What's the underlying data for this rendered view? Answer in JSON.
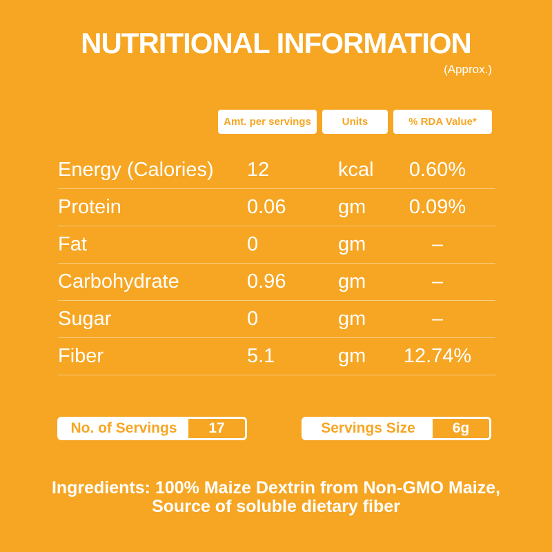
{
  "page": {
    "background_color": "#F6A623",
    "text_color": "#FFFFFF"
  },
  "header": {
    "title": "NUTRITIONAL INFORMATION",
    "subtitle": "(Approx.)"
  },
  "table": {
    "columns": [
      "Amt. per servings",
      "Units",
      "% RDA Value*"
    ],
    "rows": [
      {
        "label": "Energy (Calories)",
        "amount": "12",
        "unit": "kcal",
        "rda": "0.60%"
      },
      {
        "label": "Protein",
        "amount": "0.06",
        "unit": "gm",
        "rda": "0.09%"
      },
      {
        "label": "Fat",
        "amount": "0",
        "unit": "gm",
        "rda": "–"
      },
      {
        "label": "Carbohydrate",
        "amount": "0.96",
        "unit": "gm",
        "rda": "–"
      },
      {
        "label": "Sugar",
        "amount": "0",
        "unit": "gm",
        "rda": "–"
      },
      {
        "label": "Fiber",
        "amount": "5.1",
        "unit": "gm",
        "rda": "12.74%"
      }
    ]
  },
  "servings": {
    "count_label": "No. of Servings",
    "count_value": "17",
    "size_label": "Servings Size",
    "size_value": "6g"
  },
  "ingredients": {
    "line1": "Ingredients: 100% Maize Dextrin from Non-GMO Maize,",
    "line2": "Source of soluble dietary fiber"
  }
}
